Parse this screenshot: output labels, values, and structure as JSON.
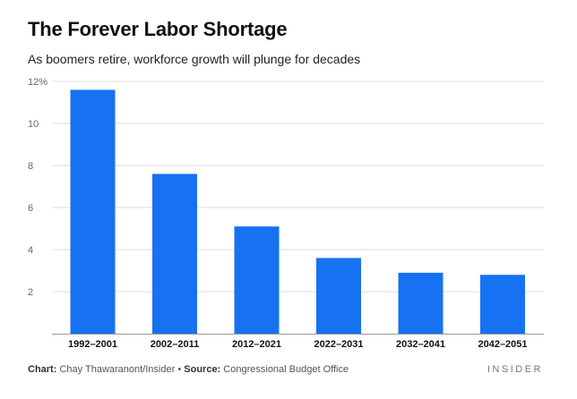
{
  "title": "The Forever Labor Shortage",
  "subtitle": "As boomers retire, workforce growth will plunge for decades",
  "footer": {
    "chart_label": "Chart:",
    "chart_credit": "Chay Thawaranont/Insider",
    "separator": "•",
    "source_label": "Source:",
    "source_credit": "Congressional Budget Office"
  },
  "logo": "INSIDER",
  "colors": {
    "bar": "#1672f3",
    "grid": "#dddddd",
    "axis": "#999999"
  },
  "chart_data": {
    "type": "bar",
    "title": "The Forever Labor Shortage",
    "subtitle": "As boomers retire, workforce growth will plunge for decades",
    "categories": [
      "1992–2001",
      "2002–2011",
      "2012–2021",
      "2022–2031",
      "2032–2041",
      "2042–2051"
    ],
    "values": [
      11.6,
      7.6,
      5.1,
      3.6,
      2.9,
      2.8
    ],
    "ylim": [
      0,
      12
    ],
    "yticks": [
      2,
      4,
      6,
      8,
      10,
      12
    ],
    "ytick_labels": [
      "2",
      "4",
      "6",
      "8",
      "10",
      "12%"
    ],
    "grid": true,
    "legend": "none"
  }
}
